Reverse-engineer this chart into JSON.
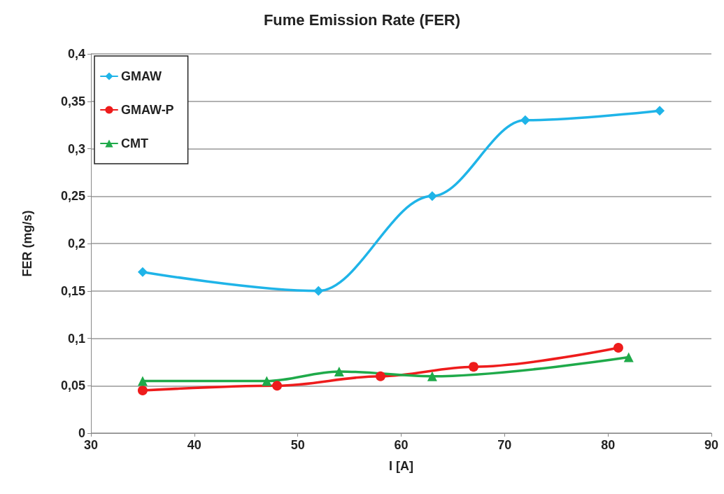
{
  "chart_data": {
    "type": "line",
    "title": "Fume Emission Rate (FER)",
    "xlabel": "I [A]",
    "ylabel": "FER (mg/s)",
    "series": [
      {
        "name": "GMAW",
        "color": "#1fb4e8",
        "marker": "diamond",
        "x": [
          35,
          52,
          63,
          72,
          85
        ],
        "values": [
          0.17,
          0.15,
          0.25,
          0.33,
          0.34
        ]
      },
      {
        "name": "GMAW-P",
        "color": "#ee1c1c",
        "marker": "circle",
        "x": [
          35,
          48,
          58,
          67,
          81
        ],
        "values": [
          0.045,
          0.05,
          0.06,
          0.07,
          0.09
        ]
      },
      {
        "name": "CMT",
        "color": "#1faa4a",
        "marker": "triangle",
        "x": [
          35,
          47,
          54,
          63,
          82
        ],
        "values": [
          0.055,
          0.055,
          0.065,
          0.06,
          0.08
        ]
      }
    ],
    "xlim": [
      30,
      90
    ],
    "xticks": [
      30,
      40,
      50,
      60,
      70,
      80,
      90
    ],
    "ylim": [
      0,
      0.4
    ],
    "yticks": [
      0,
      {
        "value": 0.05,
        "label": "0,05"
      },
      {
        "value": 0.1,
        "label": "0,1"
      },
      {
        "value": 0.15,
        "label": "0,15"
      },
      {
        "value": 0.2,
        "label": "0,2"
      },
      {
        "value": 0.25,
        "label": "0,25"
      },
      {
        "value": 0.3,
        "label": "0,3"
      },
      {
        "value": 0.35,
        "label": "0,35"
      },
      {
        "value": 0.4,
        "label": "0,4"
      }
    ],
    "grid": "y",
    "legend": "top left",
    "line_style": "solid"
  }
}
